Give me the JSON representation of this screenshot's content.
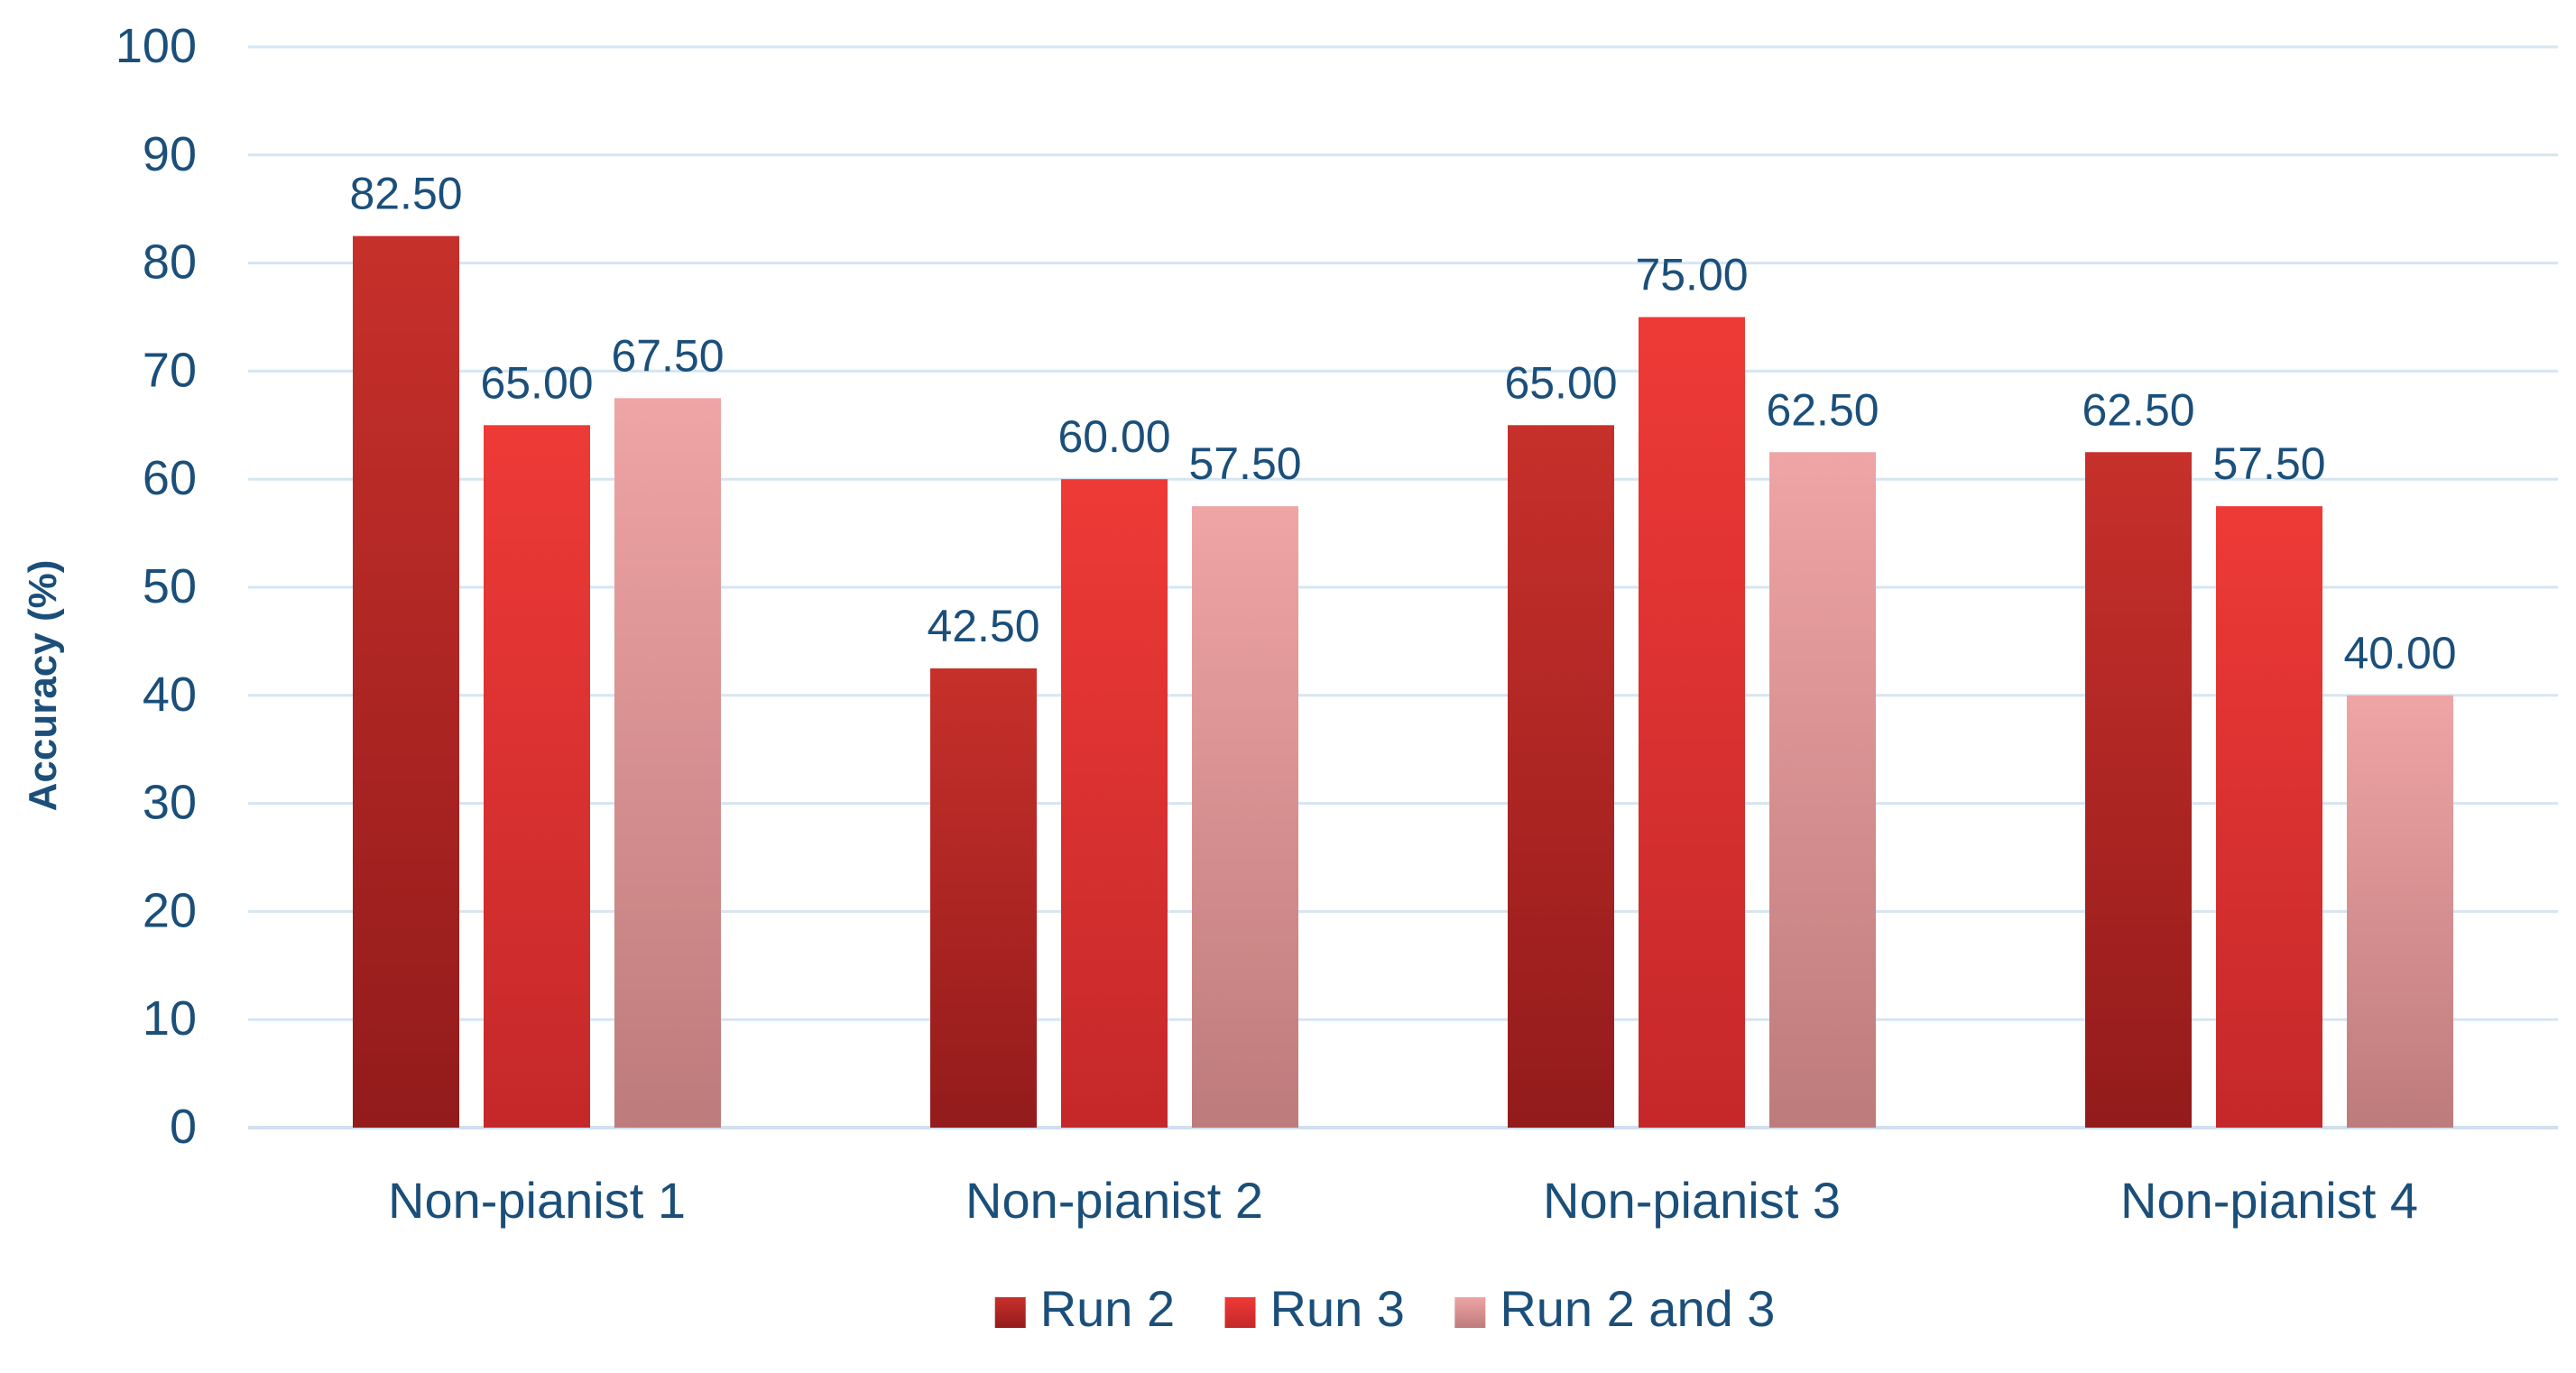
{
  "chart_data": {
    "type": "bar",
    "title": "",
    "xlabel": "",
    "ylabel": "Accuracy (%)",
    "ylim": [
      0,
      100
    ],
    "yticks": [
      "0",
      "10",
      "20",
      "30",
      "40",
      "50",
      "60",
      "70",
      "80",
      "90",
      "100"
    ],
    "grid": true,
    "legend_position": "bottom-center",
    "categories": [
      "Non-pianist 1",
      "Non-pianist 2",
      "Non-pianist 3",
      "Non-pianist 4"
    ],
    "series": [
      {
        "name": "Run 2",
        "values": [
          82.5,
          42.5,
          65.0,
          62.5
        ],
        "labels": [
          "82.50",
          "42.50",
          "65.00",
          "62.50"
        ],
        "color_top": "#c7302b",
        "color_bottom": "#931b1b"
      },
      {
        "name": "Run 3",
        "values": [
          65.0,
          60.0,
          75.0,
          57.5
        ],
        "labels": [
          "65.00",
          "60.00",
          "75.00",
          "57.50"
        ],
        "color_top": "#ee3a37",
        "color_bottom": "#c5282a"
      },
      {
        "name": "Run 2 and 3",
        "values": [
          67.5,
          57.5,
          62.5,
          40.0
        ],
        "labels": [
          "67.50",
          "57.50",
          "62.50",
          "40.00"
        ],
        "color_top": "#efa4a5",
        "color_bottom": "#be7b7b"
      }
    ],
    "colors": {
      "text": "#1b4f7a",
      "gridline": "#d5e6f2",
      "axis": "#cfe0ee"
    }
  }
}
